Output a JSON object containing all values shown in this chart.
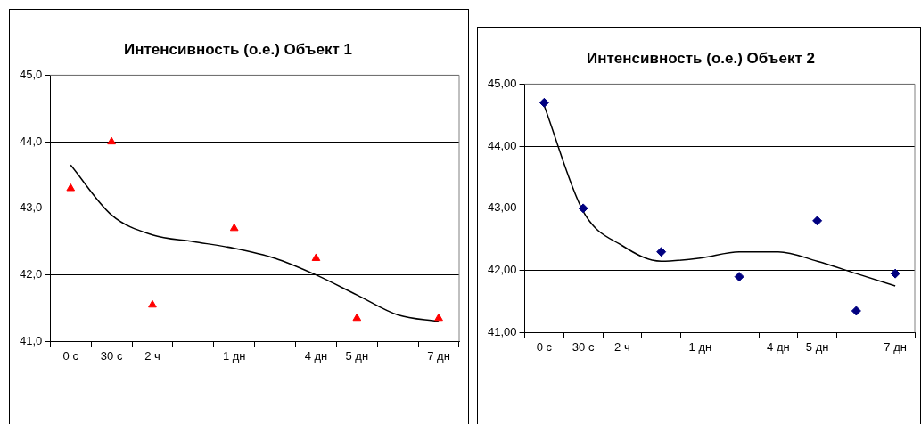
{
  "chart_data": [
    {
      "type": "scatter",
      "title": "Интенсивность (о.е.) Объект 1",
      "categories": [
        "0 с",
        "30 с",
        "2 ч",
        null,
        "1 дн",
        null,
        "4 дн",
        "5 дн",
        null,
        "7 дн"
      ],
      "series": [
        {
          "type": "scatter",
          "color": "#ff0000",
          "marker": "triangle",
          "values": [
            43.3,
            44.0,
            41.55,
            null,
            42.7,
            null,
            42.25,
            41.35,
            null,
            41.35
          ]
        },
        {
          "type": "line",
          "color": "#000000",
          "marker": "none",
          "values": [
            43.65,
            42.9,
            42.6,
            42.5,
            42.4,
            42.25,
            42.0,
            41.7,
            41.4,
            41.3
          ]
        }
      ],
      "ylim": [
        41,
        45
      ],
      "yticks": [
        {
          "value": 41,
          "label": "41,0"
        },
        {
          "value": 42,
          "label": "42,0"
        },
        {
          "value": 43,
          "label": "43,0"
        },
        {
          "value": 44,
          "label": "44,0"
        },
        {
          "value": 45,
          "label": "45,0"
        }
      ],
      "grid": "y",
      "legend": false
    },
    {
      "type": "scatter",
      "title": "Интенсивность (о.е.) Объект 2",
      "categories": [
        "0 с",
        "30 с",
        "2 ч",
        null,
        "1 дн",
        null,
        "4 дн",
        "5 дн",
        null,
        "7 дн"
      ],
      "series": [
        {
          "type": "scatter",
          "color": "#000080",
          "marker": "diamond",
          "values": [
            44.7,
            43.0,
            null,
            42.3,
            null,
            41.9,
            null,
            42.8,
            41.35,
            41.95
          ]
        },
        {
          "type": "line",
          "color": "#000000",
          "marker": "none",
          "values": [
            44.65,
            42.95,
            42.4,
            42.15,
            42.2,
            42.3,
            42.3,
            42.15,
            41.95,
            41.75
          ]
        }
      ],
      "ylim": [
        41,
        45
      ],
      "yticks": [
        {
          "value": 41,
          "label": "41,00"
        },
        {
          "value": 42,
          "label": "42,00"
        },
        {
          "value": 43,
          "label": "43,00"
        },
        {
          "value": 44,
          "label": "44,00"
        },
        {
          "value": 45,
          "label": "45,00"
        }
      ],
      "grid": "y",
      "legend": false
    }
  ]
}
